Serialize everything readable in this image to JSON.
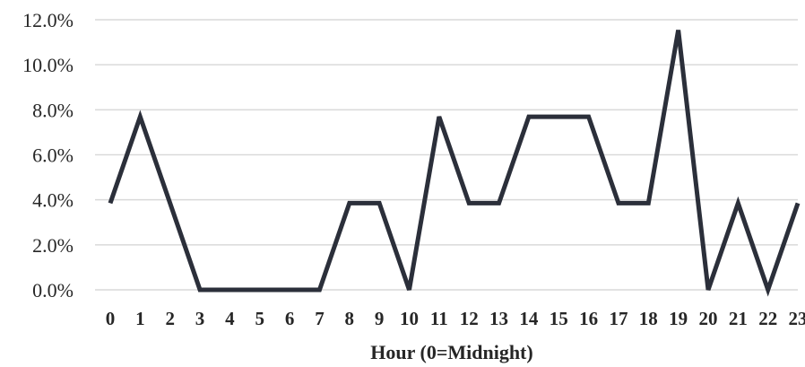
{
  "chart_data": {
    "type": "line",
    "title": "",
    "xlabel": "Hour (0=Midnight)",
    "ylabel": "",
    "categories": [
      "0",
      "1",
      "2",
      "3",
      "4",
      "5",
      "6",
      "7",
      "8",
      "9",
      "10",
      "11",
      "12",
      "13",
      "14",
      "15",
      "16",
      "17",
      "18",
      "19",
      "20",
      "21",
      "22",
      "23"
    ],
    "series": [
      {
        "values": [
          3.85,
          7.69,
          3.85,
          0.0,
          0.0,
          0.0,
          0.0,
          0.0,
          3.85,
          3.85,
          0.0,
          7.69,
          3.85,
          3.85,
          7.69,
          7.69,
          7.69,
          3.85,
          3.85,
          11.54,
          0.0,
          3.85,
          0.0,
          3.85
        ],
        "color": "#2b2f3a"
      }
    ],
    "ylim": [
      0,
      12
    ],
    "yticks": [
      "0.0%",
      "2.0%",
      "4.0%",
      "6.0%",
      "8.0%",
      "10.0%",
      "12.0%"
    ],
    "ytick_values": [
      0,
      2,
      4,
      6,
      8,
      10,
      12
    ],
    "grid": true,
    "legend": "none",
    "colors": {
      "line": "#2b2f3a",
      "grid": "#d9d9d9",
      "text": "#262626"
    }
  }
}
